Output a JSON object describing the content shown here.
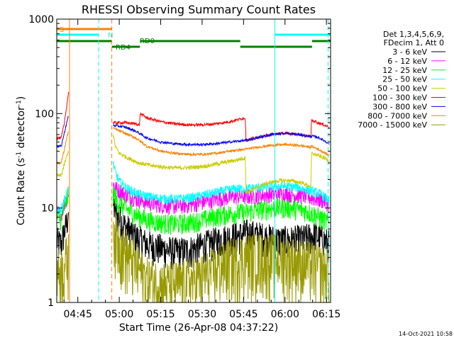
{
  "chart_data": {
    "type": "line",
    "title": "RHESSI Observing Summary Count Rates",
    "xlabel": "Start Time (26-Apr-08 04:37:22)",
    "ylabel": "Count Rate (s",
    "ylabel_sup": "-1",
    "ylabel_tail": " detector",
    "ylabel_close": ")",
    "yscale": "log",
    "ylim": [
      1,
      1000
    ],
    "xlim_min_after_0400": [
      37.37,
      136.5
    ],
    "x_ticks": [
      {
        "t": 45,
        "label": "04:45"
      },
      {
        "t": 60,
        "label": "05:00"
      },
      {
        "t": 75,
        "label": "05:15"
      },
      {
        "t": 90,
        "label": "05:30"
      },
      {
        "t": 105,
        "label": "05:45"
      },
      {
        "t": 120,
        "label": "06:00"
      },
      {
        "t": 135,
        "label": "06:15"
      }
    ],
    "y_ticks": [
      {
        "v": 1,
        "label": "1"
      },
      {
        "v": 10,
        "label": "10"
      },
      {
        "v": 100,
        "label": "100"
      },
      {
        "v": 1000,
        "label": "1000"
      }
    ],
    "footer_date": "14-Oct-2021 10:58",
    "legend": {
      "header": [
        "Det 1,3,4,5,6,9,",
        "FDecim 1, Att 0"
      ],
      "placement": "right"
    },
    "series": [
      {
        "name": "3 - 6 keV",
        "color": "#000000",
        "noise": 0.4,
        "pre": [
          [
            37.4,
            4.5
          ],
          [
            39,
            4.2
          ],
          [
            40,
            5.5
          ],
          [
            41,
            7
          ],
          [
            41.6,
            9
          ]
        ],
        "post": [
          [
            57.8,
            11
          ],
          [
            59,
            8.5
          ],
          [
            62,
            6.5
          ],
          [
            66,
            5
          ],
          [
            70,
            4.2
          ],
          [
            75,
            3.8
          ],
          [
            80,
            3.5
          ],
          [
            85,
            3.6
          ],
          [
            90,
            4
          ],
          [
            95,
            4.5
          ],
          [
            100,
            5
          ],
          [
            104,
            5.2
          ],
          [
            105.8,
            5.5
          ],
          [
            110,
            5.2
          ],
          [
            115,
            4.8
          ],
          [
            118,
            4.6
          ],
          [
            122,
            4.6
          ],
          [
            127,
            4.8
          ],
          [
            131,
            5.2
          ],
          [
            134,
            4.6
          ],
          [
            136,
            4.2
          ]
        ]
      },
      {
        "name": "6 - 12 keV",
        "color": "#ff00ff",
        "noise": 0.2,
        "pre": [
          [
            37.4,
            9
          ],
          [
            39,
            8.5
          ],
          [
            40,
            11
          ],
          [
            41,
            13
          ],
          [
            41.6,
            15
          ]
        ],
        "post": [
          [
            57.8,
            18
          ],
          [
            59,
            16
          ],
          [
            62,
            14
          ],
          [
            66,
            12.5
          ],
          [
            70,
            11.5
          ],
          [
            75,
            10.8
          ],
          [
            80,
            10.5
          ],
          [
            85,
            10.8
          ],
          [
            90,
            11.5
          ],
          [
            95,
            12.5
          ],
          [
            100,
            13
          ],
          [
            104,
            13.5
          ],
          [
            105.8,
            13.2
          ],
          [
            110,
            13.5
          ],
          [
            115,
            14
          ],
          [
            118,
            14.2
          ],
          [
            122,
            14
          ],
          [
            127,
            13.5
          ],
          [
            131,
            12.5
          ],
          [
            134,
            12
          ],
          [
            136,
            11
          ]
        ]
      },
      {
        "name": "12 - 25 keV",
        "color": "#00ff00",
        "noise": 0.25,
        "pre": [
          [
            37.4,
            8
          ],
          [
            39,
            7.5
          ],
          [
            40,
            10
          ],
          [
            41,
            12
          ],
          [
            41.6,
            14
          ]
        ],
        "post": [
          [
            57.8,
            15
          ],
          [
            59,
            12
          ],
          [
            62,
            10
          ],
          [
            66,
            8.5
          ],
          [
            70,
            7.5
          ],
          [
            75,
            7
          ],
          [
            80,
            6.8
          ],
          [
            85,
            7
          ],
          [
            90,
            7.5
          ],
          [
            95,
            8.2
          ],
          [
            100,
            8.8
          ],
          [
            104,
            9
          ],
          [
            105.8,
            9
          ],
          [
            110,
            9.5
          ],
          [
            115,
            10
          ],
          [
            118,
            10.2
          ],
          [
            122,
            10
          ],
          [
            127,
            9.5
          ],
          [
            131,
            8.5
          ],
          [
            134,
            7.5
          ],
          [
            136,
            7
          ]
        ]
      },
      {
        "name": "25 - 50 keV",
        "color": "#00ffff",
        "noise": 0.12,
        "pre": [
          [
            37.4,
            10
          ],
          [
            39,
            9.5
          ],
          [
            40,
            12
          ],
          [
            41,
            14
          ],
          [
            41.6,
            16
          ]
        ],
        "post": [
          [
            57.8,
            30
          ],
          [
            58.5,
            24
          ],
          [
            60,
            19
          ],
          [
            63,
            16
          ],
          [
            67,
            14
          ],
          [
            72,
            13
          ],
          [
            77,
            12.5
          ],
          [
            82,
            12.5
          ],
          [
            87,
            13
          ],
          [
            92,
            14
          ],
          [
            97,
            15
          ],
          [
            102,
            16
          ],
          [
            105.8,
            16
          ],
          [
            110,
            16.5
          ],
          [
            115,
            17
          ],
          [
            120,
            17
          ],
          [
            125,
            16.5
          ],
          [
            130,
            15
          ],
          [
            133,
            14
          ],
          [
            134.5,
            13
          ],
          [
            136,
            12
          ]
        ]
      },
      {
        "name": "50 - 100 keV",
        "color": "#cccc00",
        "noise": 0.05,
        "pre": [
          [
            37.4,
            22
          ],
          [
            39,
            22
          ],
          [
            40,
            28
          ],
          [
            41,
            35
          ],
          [
            41.6,
            40
          ]
        ],
        "post": [
          [
            57.8,
            60
          ],
          [
            58.5,
            45
          ],
          [
            60,
            38
          ],
          [
            63,
            34
          ],
          [
            67,
            30
          ],
          [
            72,
            28
          ],
          [
            77,
            27
          ],
          [
            82,
            26.5
          ],
          [
            87,
            27
          ],
          [
            92,
            28
          ],
          [
            97,
            30
          ],
          [
            102,
            32
          ],
          [
            105.6,
            34
          ],
          [
            105.9,
            14.5
          ],
          [
            110,
            16.5
          ],
          [
            114,
            18.5
          ],
          [
            118,
            19.5
          ],
          [
            122,
            19.5
          ],
          [
            126,
            18.5
          ],
          [
            129,
            17
          ],
          [
            129.4,
            16
          ],
          [
            129.6,
            38
          ],
          [
            132,
            36
          ],
          [
            136,
            32
          ]
        ]
      },
      {
        "name": "100 - 300 keV",
        "color": "#ff0000",
        "noise": 0.035,
        "pre": [
          [
            37.4,
            55
          ],
          [
            39,
            55
          ],
          [
            40,
            75
          ],
          [
            41,
            120
          ],
          [
            41.6,
            165
          ]
        ],
        "post": [
          [
            57.8,
            80
          ],
          [
            62,
            80
          ],
          [
            66,
            78
          ],
          [
            67.3,
            75
          ],
          [
            67.6,
            100
          ],
          [
            70,
            90
          ],
          [
            75,
            82
          ],
          [
            80,
            78
          ],
          [
            85,
            76
          ],
          [
            90,
            76
          ],
          [
            95,
            78
          ],
          [
            100,
            82
          ],
          [
            105.6,
            90
          ],
          [
            105.9,
            52
          ],
          [
            110,
            56
          ],
          [
            115,
            60
          ],
          [
            120,
            62
          ],
          [
            125,
            60
          ],
          [
            129.4,
            57
          ],
          [
            129.6,
            85
          ],
          [
            132,
            80
          ],
          [
            136,
            72
          ]
        ]
      },
      {
        "name": "300 - 800 keV",
        "color": "#0000ff",
        "noise": 0.03,
        "pre": [
          [
            37.4,
            45
          ],
          [
            39,
            45
          ],
          [
            40,
            60
          ],
          [
            41,
            80
          ],
          [
            41.6,
            95
          ]
        ],
        "post": [
          [
            57.8,
            75
          ],
          [
            62,
            72
          ],
          [
            66,
            65
          ],
          [
            70,
            55
          ],
          [
            75,
            50
          ],
          [
            80,
            48
          ],
          [
            85,
            47
          ],
          [
            90,
            47
          ],
          [
            95,
            48
          ],
          [
            100,
            50
          ],
          [
            105.8,
            52
          ],
          [
            110,
            55
          ],
          [
            115,
            60
          ],
          [
            120,
            62
          ],
          [
            125,
            60
          ],
          [
            129.4,
            57
          ],
          [
            129.6,
            58
          ],
          [
            132,
            56
          ],
          [
            136,
            48
          ]
        ]
      },
      {
        "name": "800 - 7000 keV",
        "color": "#ff8000",
        "noise": 0.03,
        "pre": [
          [
            37.4,
            30
          ],
          [
            39,
            30
          ],
          [
            40,
            40
          ],
          [
            41,
            55
          ],
          [
            41.6,
            65
          ]
        ],
        "post": [
          [
            57.8,
            70
          ],
          [
            62,
            62
          ],
          [
            66,
            55
          ],
          [
            70,
            45
          ],
          [
            75,
            40
          ],
          [
            80,
            38
          ],
          [
            85,
            37
          ],
          [
            90,
            37
          ],
          [
            95,
            38
          ],
          [
            100,
            40
          ],
          [
            105.8,
            42
          ],
          [
            110,
            44
          ],
          [
            115,
            46
          ],
          [
            120,
            47
          ],
          [
            125,
            46
          ],
          [
            129.4,
            44
          ],
          [
            129.6,
            45
          ],
          [
            132,
            42
          ],
          [
            136,
            36
          ]
        ]
      },
      {
        "name": "7000 - 15000 keV",
        "color": "#999900",
        "noise": 0.7,
        "pre": [
          [
            37.4,
            2.2
          ],
          [
            39,
            2.2
          ],
          [
            40,
            2.5
          ],
          [
            41,
            3
          ],
          [
            41.6,
            3.2
          ]
        ],
        "post": [
          [
            57.8,
            7
          ],
          [
            59,
            5
          ],
          [
            62,
            3.5
          ],
          [
            66,
            2.5
          ],
          [
            70,
            1.8
          ],
          [
            75,
            1.6
          ],
          [
            80,
            1.6
          ],
          [
            85,
            1.7
          ],
          [
            90,
            1.9
          ],
          [
            95,
            2.3
          ],
          [
            100,
            2.8
          ],
          [
            104,
            3
          ],
          [
            105.8,
            3.2
          ],
          [
            110,
            3.2
          ],
          [
            115,
            3.2
          ],
          [
            120,
            3
          ],
          [
            125,
            2.8
          ],
          [
            130,
            2.6
          ],
          [
            134,
            2.3
          ],
          [
            136,
            2.2
          ]
        ]
      }
    ],
    "data_gap_min": [
      41.7,
      57.7
    ],
    "vlines": [
      {
        "t": 42.0,
        "color": "#ff8000",
        "style": "solid"
      },
      {
        "t": 52.5,
        "color": "#00ffff",
        "style": "dashed"
      },
      {
        "t": 57.3,
        "color": "#ff8000",
        "style": "dashed"
      },
      {
        "t": 116.3,
        "color": "#00ffff",
        "style": "solid"
      },
      {
        "t": 135.6,
        "color": "#00ffff",
        "style": "dashed"
      }
    ],
    "flags": [
      {
        "label": "S",
        "color": "#ff8000",
        "level": 1,
        "segments": [
          [
            37.4,
            57.3
          ]
        ]
      },
      {
        "label": "N",
        "color": "#00ffff",
        "level": 2,
        "segments": [
          [
            37.4,
            52.5
          ],
          [
            116.3,
            136.5
          ]
        ]
      },
      {
        "label": "RD0",
        "color": "#008000",
        "level": 3,
        "segments": [
          [
            37.4,
            57.3
          ],
          [
            67.5,
            103.8
          ],
          [
            129.8,
            136.5
          ]
        ]
      },
      {
        "label": "RD4",
        "color": "#008000",
        "level": 4,
        "segments": [
          [
            57.3,
            67.5
          ],
          [
            103.8,
            129.8
          ]
        ]
      }
    ]
  }
}
